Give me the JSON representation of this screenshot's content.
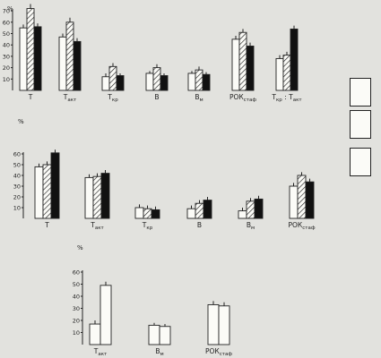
{
  "panels": [
    {
      "y_unit": "%",
      "y_ticks": [
        10,
        20,
        30,
        40,
        50,
        60,
        70
      ],
      "ylim": [
        0,
        75
      ],
      "groups": [
        {
          "label": "T",
          "values": [
            55,
            72,
            56
          ],
          "err": [
            3,
            4,
            3
          ]
        },
        {
          "label": "Т акт",
          "values": [
            47,
            60,
            43
          ],
          "err": [
            3,
            4,
            3
          ]
        },
        {
          "label": "Т кр",
          "values": [
            12,
            21,
            13
          ],
          "err": [
            3,
            3,
            2
          ]
        },
        {
          "label": "В",
          "values": [
            15,
            20,
            13
          ],
          "err": [
            2,
            3,
            2
          ]
        },
        {
          "label": "В м",
          "values": [
            15,
            18,
            14
          ],
          "err": [
            2,
            3,
            2
          ]
        },
        {
          "label": "РОК стаф",
          "values": [
            45,
            51,
            39
          ],
          "err": [
            3,
            3,
            3
          ]
        },
        {
          "label": "Т кр : Т акт",
          "values": [
            28,
            31,
            54
          ],
          "err": [
            3,
            3,
            3
          ]
        }
      ]
    },
    {
      "y_unit": "%",
      "y_ticks": [
        10,
        20,
        30,
        40,
        50,
        60
      ],
      "ylim": [
        0,
        65
      ],
      "groups": [
        {
          "label": "T",
          "values": [
            48,
            50,
            61
          ],
          "err": [
            3,
            3,
            3
          ]
        },
        {
          "label": "Т акт",
          "values": [
            38,
            39,
            42
          ],
          "err": [
            3,
            3,
            3
          ]
        },
        {
          "label": "Т кр",
          "values": [
            10,
            9,
            8
          ],
          "err": [
            3,
            3,
            3
          ]
        },
        {
          "label": "В",
          "values": [
            9,
            14,
            17
          ],
          "err": [
            3,
            3,
            3
          ]
        },
        {
          "label": "В м",
          "values": [
            7,
            16,
            18
          ],
          "err": [
            3,
            3,
            3
          ]
        },
        {
          "label": "РОК стаф",
          "values": [
            30,
            40,
            34
          ],
          "err": [
            3,
            3,
            3
          ]
        }
      ]
    },
    {
      "y_unit": "%",
      "y_ticks": [
        10,
        20,
        30,
        40,
        50,
        60
      ],
      "ylim": [
        0,
        62
      ],
      "groups": [
        {
          "label": "Т акт",
          "values": [
            17,
            49
          ],
          "err": [
            3,
            3
          ]
        },
        {
          "label": "В м",
          "values": [
            16,
            15
          ],
          "err": [
            2,
            2
          ]
        },
        {
          "label": "РОК стаф",
          "values": [
            33,
            32
          ],
          "err": [
            3,
            3
          ]
        }
      ]
    }
  ],
  "chart_data": [
    {
      "type": "bar",
      "ylabel": "%",
      "ylim": [
        0,
        75
      ],
      "categories": [
        "T",
        "Tакт",
        "Tкр",
        "В",
        "Вм",
        "РОКстаф",
        "Tкр : Tакт"
      ],
      "series": [
        {
          "values": [
            55,
            47,
            12,
            15,
            15,
            45,
            28
          ]
        },
        {
          "values": [
            72,
            60,
            21,
            20,
            18,
            51,
            31
          ]
        },
        {
          "values": [
            56,
            43,
            13,
            13,
            14,
            39,
            54
          ]
        }
      ]
    },
    {
      "type": "bar",
      "ylabel": "%",
      "ylim": [
        0,
        65
      ],
      "categories": [
        "T",
        "Tакт",
        "Tкр",
        "В",
        "Вм",
        "РОКстаф"
      ],
      "series": [
        {
          "values": [
            48,
            38,
            10,
            9,
            7,
            30
          ]
        },
        {
          "values": [
            50,
            39,
            9,
            14,
            16,
            40
          ]
        },
        {
          "values": [
            61,
            42,
            8,
            17,
            18,
            34
          ]
        }
      ]
    },
    {
      "type": "bar",
      "ylabel": "%",
      "ylim": [
        0,
        62
      ],
      "categories": [
        "Tакт",
        "Вм",
        "РОКстаф"
      ],
      "series": [
        {
          "values": [
            17,
            16,
            33
          ]
        },
        {
          "values": [
            49,
            15,
            32
          ]
        }
      ]
    }
  ],
  "styles": {
    "fills": [
      "#fbfbf7",
      "pattern",
      "#111111"
    ],
    "ink": "#222222",
    "legend_fills": [
      "#fbfbf7",
      "#fbfbf7",
      "#fbfbf7"
    ]
  }
}
